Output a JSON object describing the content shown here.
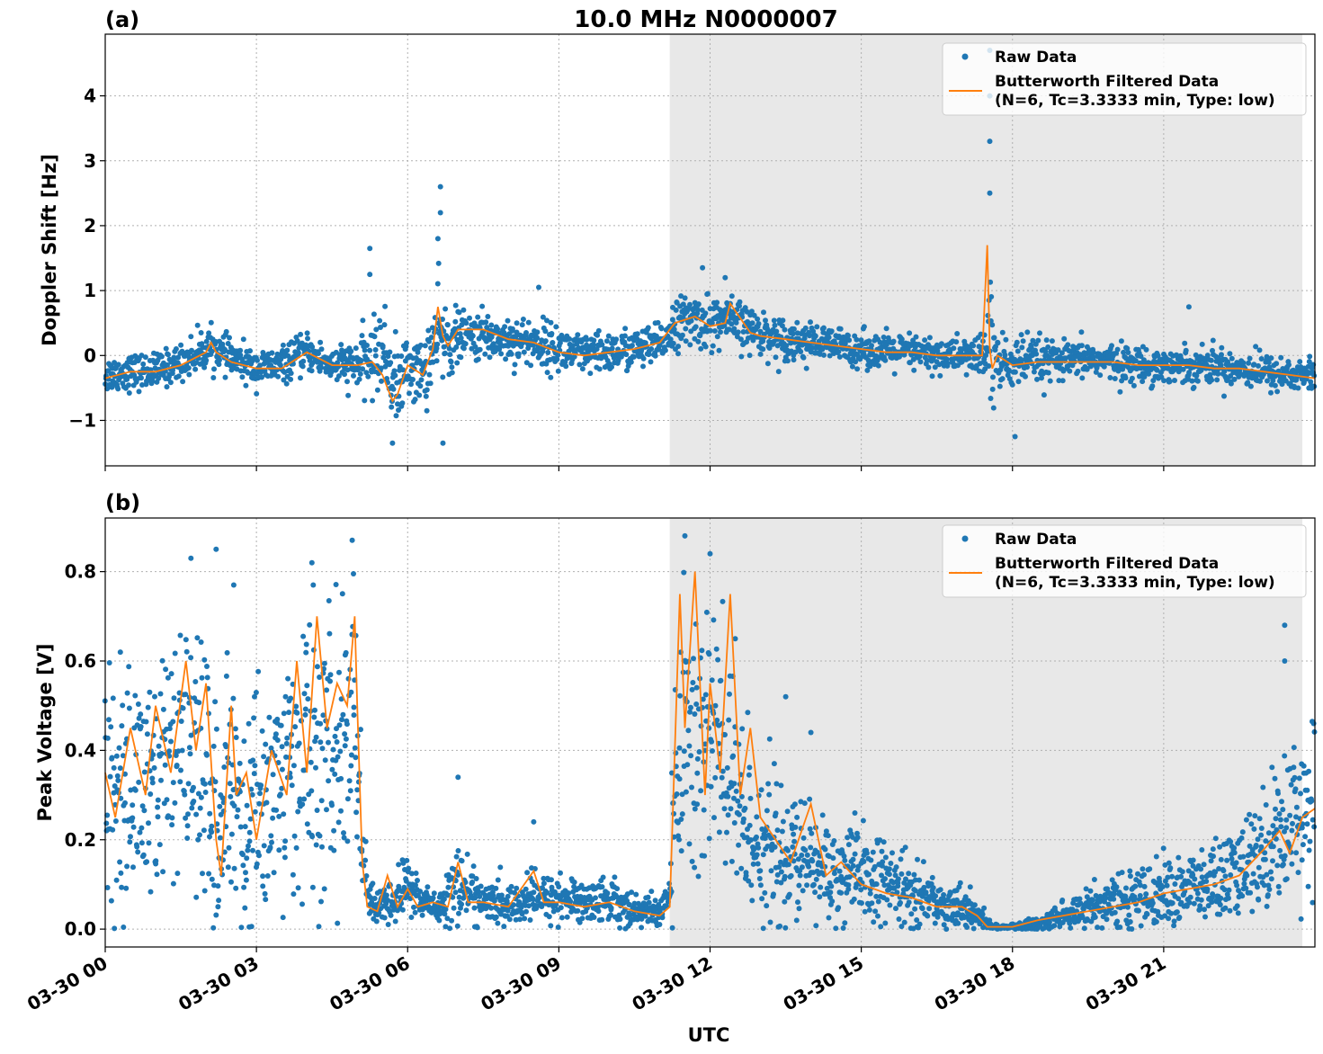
{
  "figure_title": "10.0 MHz N0000007",
  "x_axis_label": "UTC",
  "x_ticks": [
    "03-30 00",
    "03-30 03",
    "03-30 06",
    "03-30 09",
    "03-30 12",
    "03-30 15",
    "03-30 18",
    "03-30 21"
  ],
  "legend": {
    "raw": "Raw Data",
    "filtered_line1": "Butterworth Filtered Data",
    "filtered_line2": "(N=6, Tc=3.3333 min, Type: low)"
  },
  "colors": {
    "raw": "#1f77b4",
    "filtered": "#ff7f0e",
    "shade": "#e8e8e8"
  },
  "chart_data": [
    {
      "type": "scatter",
      "panel_label": "(a)",
      "ylabel": "Doppler Shift [Hz]",
      "xlabel": "",
      "xlim_hours": [
        0,
        24
      ],
      "ylim": [
        -1.7,
        4.95
      ],
      "yticks": [
        -1,
        0,
        1,
        2,
        3,
        4
      ],
      "ytick_labels": [
        "−1",
        "0",
        "1",
        "2",
        "3",
        "4"
      ],
      "grid": true,
      "legend_position": "upper-right",
      "shaded_interval_hours": [
        11.2,
        23.75
      ],
      "series": [
        {
          "name": "Raw Data",
          "kind": "points",
          "x_hours": [
            0,
            0.5,
            1,
            1.5,
            2,
            2.1,
            2.5,
            3,
            3.5,
            4,
            4.5,
            5,
            5.3,
            5.5,
            5.8,
            6,
            6.3,
            6.6,
            6.8,
            7,
            7.5,
            8,
            8.5,
            9,
            9.5,
            10,
            10.5,
            11,
            11.3,
            11.7,
            12,
            12.3,
            12.8,
            13,
            13.5,
            14,
            14.5,
            15,
            15.5,
            16,
            16.5,
            17,
            17.5,
            17.55,
            17.7,
            18,
            18.5,
            19,
            19.5,
            20,
            20.5,
            21,
            21.5,
            22,
            22.5,
            23,
            23.5,
            24
          ],
          "center": [
            -0.3,
            -0.25,
            -0.25,
            -0.1,
            0.1,
            0.15,
            -0.05,
            -0.2,
            -0.15,
            0.05,
            -0.15,
            -0.15,
            -0.05,
            0.1,
            -0.5,
            -0.15,
            -0.3,
            0.3,
            0.2,
            0.3,
            0.3,
            0.25,
            0.2,
            0.1,
            0.0,
            0.05,
            0.1,
            0.15,
            0.5,
            0.55,
            0.5,
            0.55,
            0.4,
            0.35,
            0.25,
            0.2,
            0.15,
            0.1,
            0.05,
            0.05,
            0.0,
            0.0,
            0.0,
            0.5,
            -0.2,
            -0.1,
            -0.1,
            -0.1,
            -0.05,
            -0.1,
            -0.15,
            -0.15,
            -0.15,
            -0.15,
            -0.2,
            -0.25,
            -0.3,
            -0.3
          ],
          "spread": [
            0.3,
            0.3,
            0.3,
            0.3,
            0.35,
            0.3,
            0.3,
            0.3,
            0.3,
            0.3,
            0.3,
            0.4,
            0.6,
            0.7,
            0.7,
            0.5,
            0.6,
            0.8,
            0.7,
            0.4,
            0.4,
            0.4,
            0.4,
            0.4,
            0.35,
            0.35,
            0.35,
            0.35,
            0.4,
            0.45,
            0.45,
            0.4,
            0.4,
            0.35,
            0.35,
            0.3,
            0.3,
            0.3,
            0.3,
            0.3,
            0.3,
            0.3,
            0.4,
            1.8,
            0.6,
            0.45,
            0.4,
            0.3,
            0.3,
            0.3,
            0.3,
            0.3,
            0.3,
            0.3,
            0.3,
            0.3,
            0.3,
            0.3
          ],
          "peaks": [
            {
              "x": 5.25,
              "y": 1.65
            },
            {
              "x": 5.25,
              "y": 1.25
            },
            {
              "x": 6.65,
              "y": 2.6
            },
            {
              "x": 6.65,
              "y": 2.2
            },
            {
              "x": 6.6,
              "y": 1.8
            },
            {
              "x": 8.6,
              "y": 1.05
            },
            {
              "x": 11.85,
              "y": 1.35
            },
            {
              "x": 12.3,
              "y": 1.2
            },
            {
              "x": 17.55,
              "y": 4.7
            },
            {
              "x": 17.55,
              "y": 4.0
            },
            {
              "x": 17.55,
              "y": 3.3
            },
            {
              "x": 17.55,
              "y": 2.5
            },
            {
              "x": 21.5,
              "y": 0.75
            },
            {
              "x": 18.05,
              "y": -1.25
            },
            {
              "x": 6.7,
              "y": -1.35
            },
            {
              "x": 5.7,
              "y": -1.35
            }
          ]
        },
        {
          "name": "Butterworth Filtered Data (N=6, Tc=3.3333 min, Type: low)",
          "kind": "line",
          "x_hours": [
            0,
            0.5,
            1,
            1.5,
            2,
            2.1,
            2.2,
            2.5,
            3,
            3.5,
            4,
            4.5,
            5,
            5.3,
            5.5,
            5.7,
            5.8,
            6,
            6.3,
            6.5,
            6.6,
            6.7,
            6.8,
            7,
            7.5,
            8,
            8.5,
            9,
            9.5,
            10,
            10.5,
            11,
            11.3,
            11.7,
            12,
            12.3,
            12.4,
            12.8,
            13,
            13.5,
            14,
            14.5,
            15,
            15.5,
            16,
            16.5,
            17,
            17.4,
            17.5,
            17.55,
            17.6,
            17.7,
            18,
            18.5,
            19,
            19.5,
            20,
            20.5,
            21,
            21.5,
            22,
            22.5,
            23,
            23.5,
            24
          ],
          "y": [
            -0.35,
            -0.25,
            -0.25,
            -0.15,
            0.05,
            0.2,
            0.05,
            -0.1,
            -0.2,
            -0.2,
            0.05,
            -0.15,
            -0.15,
            -0.1,
            -0.3,
            -0.7,
            -0.6,
            -0.15,
            -0.3,
            0.1,
            0.75,
            0.3,
            0.15,
            0.4,
            0.4,
            0.25,
            0.2,
            0.05,
            0.0,
            0.05,
            0.1,
            0.2,
            0.5,
            0.6,
            0.45,
            0.5,
            0.8,
            0.35,
            0.3,
            0.25,
            0.2,
            0.15,
            0.1,
            0.05,
            0.05,
            0.0,
            0.0,
            0.0,
            1.7,
            0.1,
            -0.2,
            0.0,
            -0.15,
            -0.1,
            -0.1,
            -0.1,
            -0.1,
            -0.15,
            -0.15,
            -0.15,
            -0.2,
            -0.2,
            -0.25,
            -0.3,
            -0.35
          ]
        }
      ]
    },
    {
      "type": "scatter",
      "panel_label": "(b)",
      "ylabel": "Peak Voltage [V]",
      "xlabel": "UTC",
      "xlim_hours": [
        0,
        24
      ],
      "ylim": [
        -0.04,
        0.92
      ],
      "yticks": [
        0.0,
        0.2,
        0.4,
        0.6,
        0.8
      ],
      "ytick_labels": [
        "0.0",
        "0.2",
        "0.4",
        "0.6",
        "0.8"
      ],
      "grid": true,
      "legend_position": "upper-right",
      "shaded_interval_hours": [
        11.2,
        23.75
      ],
      "series": [
        {
          "name": "Raw Data",
          "kind": "points",
          "x_hours": [
            0,
            0.3,
            0.6,
            1,
            1.3,
            1.6,
            2,
            2.3,
            2.5,
            2.8,
            3,
            3.3,
            3.6,
            4,
            4.3,
            4.6,
            4.9,
            5.0,
            5.1,
            5.3,
            5.6,
            6,
            6.3,
            6.6,
            7,
            7.5,
            8,
            8.5,
            9,
            9.5,
            10,
            10.5,
            11,
            11.2,
            11.4,
            11.7,
            12,
            12.3,
            12.6,
            13,
            13.5,
            14,
            14.5,
            15,
            15.5,
            16,
            16.5,
            17,
            17.3,
            17.6,
            18,
            18.5,
            19,
            19.5,
            20,
            20.5,
            21,
            21.5,
            22,
            22.5,
            23,
            23.5,
            24
          ],
          "center": [
            0.3,
            0.3,
            0.3,
            0.35,
            0.35,
            0.4,
            0.35,
            0.2,
            0.35,
            0.25,
            0.3,
            0.3,
            0.35,
            0.4,
            0.35,
            0.4,
            0.45,
            0.5,
            0.15,
            0.05,
            0.05,
            0.1,
            0.06,
            0.05,
            0.1,
            0.06,
            0.05,
            0.07,
            0.07,
            0.06,
            0.07,
            0.04,
            0.04,
            0.08,
            0.45,
            0.4,
            0.45,
            0.35,
            0.25,
            0.2,
            0.15,
            0.15,
            0.12,
            0.12,
            0.1,
            0.08,
            0.06,
            0.05,
            0.03,
            0.005,
            0.005,
            0.01,
            0.03,
            0.05,
            0.06,
            0.07,
            0.08,
            0.09,
            0.1,
            0.12,
            0.18,
            0.25,
            0.3
          ],
          "spread": [
            0.25,
            0.25,
            0.3,
            0.3,
            0.3,
            0.3,
            0.3,
            0.2,
            0.3,
            0.25,
            0.3,
            0.3,
            0.3,
            0.35,
            0.35,
            0.35,
            0.35,
            0.35,
            0.1,
            0.05,
            0.05,
            0.08,
            0.05,
            0.04,
            0.1,
            0.05,
            0.05,
            0.06,
            0.06,
            0.05,
            0.06,
            0.04,
            0.04,
            0.06,
            0.4,
            0.4,
            0.4,
            0.35,
            0.25,
            0.2,
            0.15,
            0.15,
            0.12,
            0.12,
            0.1,
            0.08,
            0.06,
            0.05,
            0.04,
            0.005,
            0.005,
            0.02,
            0.04,
            0.05,
            0.06,
            0.07,
            0.08,
            0.09,
            0.1,
            0.12,
            0.15,
            0.18,
            0.2
          ],
          "peaks": [
            {
              "x": 0.3,
              "y": 0.62
            },
            {
              "x": 1.7,
              "y": 0.83
            },
            {
              "x": 2.2,
              "y": 0.85
            },
            {
              "x": 2.55,
              "y": 0.77
            },
            {
              "x": 4.1,
              "y": 0.82
            },
            {
              "x": 4.9,
              "y": 0.87
            },
            {
              "x": 7.0,
              "y": 0.34
            },
            {
              "x": 8.5,
              "y": 0.24
            },
            {
              "x": 11.5,
              "y": 0.88
            },
            {
              "x": 12.0,
              "y": 0.84
            },
            {
              "x": 12.5,
              "y": 0.65
            },
            {
              "x": 13.5,
              "y": 0.52
            },
            {
              "x": 14.0,
              "y": 0.44
            },
            {
              "x": 23.4,
              "y": 0.68
            },
            {
              "x": 23.4,
              "y": 0.6
            }
          ]
        },
        {
          "name": "Butterworth Filtered Data (N=6, Tc=3.3333 min, Type: low)",
          "kind": "line",
          "x_hours": [
            0,
            0.2,
            0.5,
            0.8,
            1,
            1.3,
            1.6,
            1.8,
            2,
            2.2,
            2.3,
            2.5,
            2.6,
            2.8,
            3,
            3.3,
            3.6,
            3.8,
            4,
            4.2,
            4.4,
            4.6,
            4.8,
            4.95,
            5.0,
            5.1,
            5.2,
            5.4,
            5.6,
            5.8,
            6,
            6.2,
            6.5,
            6.8,
            7,
            7.2,
            7.5,
            8,
            8.5,
            8.7,
            9,
            9.5,
            10,
            10.5,
            11,
            11.2,
            11.4,
            11.5,
            11.7,
            11.9,
            12,
            12.2,
            12.4,
            12.6,
            12.8,
            13,
            13.3,
            13.6,
            14,
            14.3,
            14.6,
            15,
            15.5,
            16,
            16.5,
            17,
            17.3,
            17.5,
            17.6,
            18,
            18.5,
            19,
            19.5,
            20,
            20.5,
            21,
            21.5,
            22,
            22.5,
            23,
            23.3,
            23.5,
            23.75,
            24
          ],
          "y": [
            0.35,
            0.25,
            0.45,
            0.3,
            0.5,
            0.35,
            0.6,
            0.4,
            0.55,
            0.2,
            0.12,
            0.5,
            0.3,
            0.35,
            0.2,
            0.4,
            0.3,
            0.6,
            0.35,
            0.7,
            0.45,
            0.55,
            0.5,
            0.7,
            0.5,
            0.15,
            0.05,
            0.04,
            0.12,
            0.05,
            0.09,
            0.05,
            0.06,
            0.05,
            0.15,
            0.06,
            0.06,
            0.05,
            0.13,
            0.06,
            0.06,
            0.05,
            0.06,
            0.04,
            0.03,
            0.05,
            0.75,
            0.45,
            0.8,
            0.3,
            0.55,
            0.35,
            0.75,
            0.3,
            0.45,
            0.25,
            0.2,
            0.15,
            0.28,
            0.12,
            0.15,
            0.1,
            0.08,
            0.07,
            0.05,
            0.05,
            0.03,
            0.005,
            0.005,
            0.005,
            0.02,
            0.03,
            0.04,
            0.05,
            0.06,
            0.08,
            0.09,
            0.1,
            0.12,
            0.18,
            0.22,
            0.17,
            0.25,
            0.27
          ]
        }
      ]
    }
  ]
}
